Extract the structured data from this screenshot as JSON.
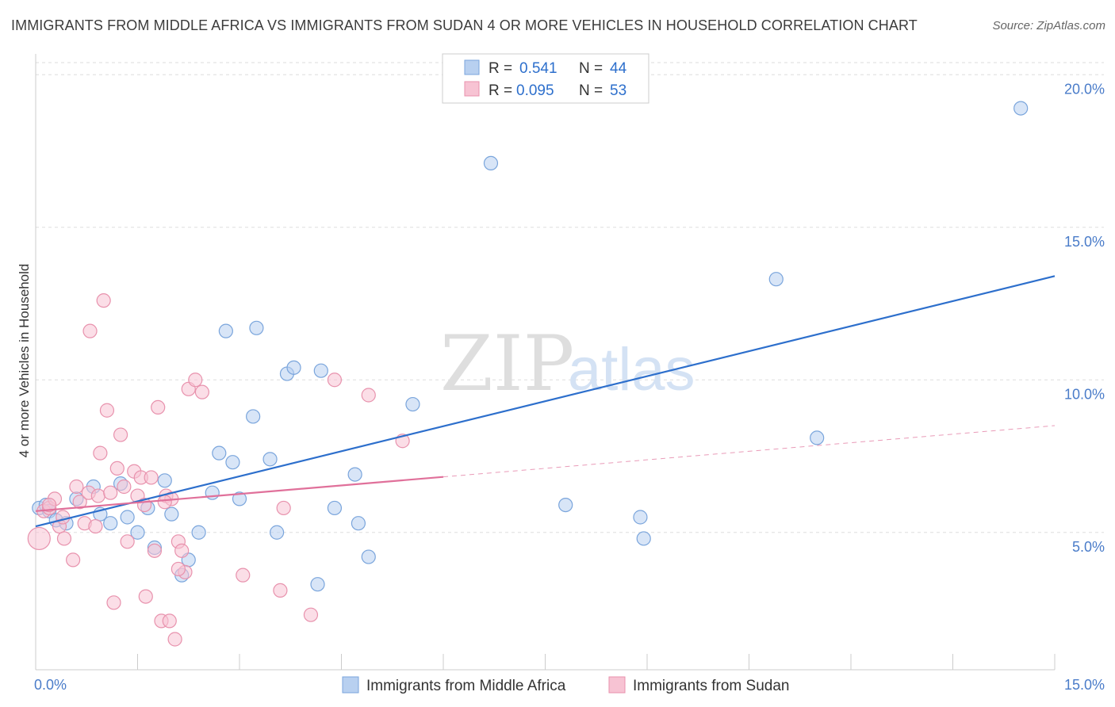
{
  "title": "IMMIGRANTS FROM MIDDLE AFRICA VS IMMIGRANTS FROM SUDAN 4 OR MORE VEHICLES IN HOUSEHOLD CORRELATION CHART",
  "source": "Source: ZipAtlas.com",
  "watermark": {
    "zip": "ZIP",
    "atlas": "atlas"
  },
  "legend": {
    "blue": {
      "r_label": "R =",
      "r_value": "0.541",
      "n_label": "N =",
      "n_value": "44"
    },
    "pink": {
      "r_label": "R =",
      "r_value": "0.095",
      "n_label": "N =",
      "n_value": "53"
    }
  },
  "colors": {
    "blue_fill": "#b8d0f0",
    "blue_stroke": "#7aa5dc",
    "blue_line": "#2d6fcc",
    "pink_fill": "#f7c3d3",
    "pink_stroke": "#e892ad",
    "pink_line": "#e0709a",
    "tick_text": "#4a7cc9",
    "grid": "#dddddd"
  },
  "chart_data": {
    "type": "scatter",
    "title": "IMMIGRANTS FROM MIDDLE AFRICA VS IMMIGRANTS FROM SUDAN 4 OR MORE VEHICLES IN HOUSEHOLD CORRELATION CHART",
    "xlabel": "",
    "ylabel": "4 or more Vehicles in Household",
    "xlim": [
      0,
      15
    ],
    "ylim": [
      0.5,
      20.5
    ],
    "x_ticks": [
      {
        "value": 0,
        "label": "0.0%"
      },
      {
        "value": 15,
        "label": "15.0%"
      }
    ],
    "y_ticks": [
      {
        "value": 5,
        "label": "5.0%"
      },
      {
        "value": 10,
        "label": "10.0%"
      },
      {
        "value": 15,
        "label": "15.0%"
      },
      {
        "value": 20,
        "label": "20.0%"
      }
    ],
    "grid": "horizontal dashed",
    "legend_position": "top-center",
    "series": [
      {
        "name": "Immigrants from Middle Africa",
        "color": "blue",
        "trend": {
          "x": [
            0,
            15
          ],
          "y": [
            5.2,
            13.4
          ],
          "dashed_from": null
        },
        "points": [
          [
            0.05,
            5.8
          ],
          [
            0.15,
            5.9
          ],
          [
            0.2,
            5.7
          ],
          [
            0.3,
            5.4
          ],
          [
            0.45,
            5.3
          ],
          [
            0.6,
            6.1
          ],
          [
            0.85,
            6.5
          ],
          [
            0.95,
            5.6
          ],
          [
            1.1,
            5.3
          ],
          [
            1.25,
            6.6
          ],
          [
            1.35,
            5.5
          ],
          [
            1.5,
            5.0
          ],
          [
            1.65,
            5.8
          ],
          [
            1.75,
            4.5
          ],
          [
            1.9,
            6.7
          ],
          [
            2.0,
            5.6
          ],
          [
            2.15,
            3.6
          ],
          [
            2.25,
            4.1
          ],
          [
            2.4,
            5.0
          ],
          [
            2.6,
            6.3
          ],
          [
            2.7,
            7.6
          ],
          [
            2.8,
            11.6
          ],
          [
            2.9,
            7.3
          ],
          [
            3.0,
            6.1
          ],
          [
            3.2,
            8.8
          ],
          [
            3.25,
            11.7
          ],
          [
            3.45,
            7.4
          ],
          [
            3.55,
            5.0
          ],
          [
            3.7,
            10.2
          ],
          [
            3.8,
            10.4
          ],
          [
            4.15,
            3.3
          ],
          [
            4.2,
            10.3
          ],
          [
            4.4,
            5.8
          ],
          [
            4.7,
            6.9
          ],
          [
            4.75,
            5.3
          ],
          [
            4.9,
            4.2
          ],
          [
            5.55,
            9.2
          ],
          [
            6.7,
            17.1
          ],
          [
            7.8,
            5.9
          ],
          [
            8.9,
            5.5
          ],
          [
            8.95,
            4.8
          ],
          [
            10.9,
            13.3
          ],
          [
            11.5,
            8.1
          ],
          [
            14.5,
            18.9
          ]
        ]
      },
      {
        "name": "Immigrants from Sudan",
        "color": "pink",
        "trend": {
          "x": [
            0,
            15
          ],
          "y": [
            5.7,
            8.5
          ],
          "dashed_from": 6.0
        },
        "points": [
          [
            0.05,
            4.8
          ],
          [
            0.12,
            5.7
          ],
          [
            0.2,
            5.8
          ],
          [
            0.28,
            6.1
          ],
          [
            0.35,
            5.2
          ],
          [
            0.42,
            4.8
          ],
          [
            0.55,
            4.1
          ],
          [
            0.6,
            6.5
          ],
          [
            0.65,
            6.0
          ],
          [
            0.72,
            5.3
          ],
          [
            0.78,
            6.3
          ],
          [
            0.8,
            11.6
          ],
          [
            0.88,
            5.2
          ],
          [
            0.92,
            6.2
          ],
          [
            0.95,
            7.6
          ],
          [
            1.0,
            12.6
          ],
          [
            1.05,
            9.0
          ],
          [
            1.15,
            2.7
          ],
          [
            1.2,
            7.1
          ],
          [
            1.25,
            8.2
          ],
          [
            1.3,
            6.5
          ],
          [
            1.35,
            4.7
          ],
          [
            1.45,
            7.0
          ],
          [
            1.5,
            6.2
          ],
          [
            1.55,
            6.8
          ],
          [
            1.6,
            5.9
          ],
          [
            1.62,
            2.9
          ],
          [
            1.7,
            6.8
          ],
          [
            1.75,
            4.4
          ],
          [
            1.8,
            9.1
          ],
          [
            1.85,
            2.1
          ],
          [
            1.92,
            6.2
          ],
          [
            1.97,
            2.1
          ],
          [
            2.0,
            6.1
          ],
          [
            2.05,
            1.5
          ],
          [
            2.1,
            4.7
          ],
          [
            2.15,
            4.4
          ],
          [
            2.2,
            3.7
          ],
          [
            2.25,
            9.7
          ],
          [
            2.35,
            10.0
          ],
          [
            2.45,
            9.6
          ],
          [
            3.05,
            3.6
          ],
          [
            3.6,
            3.1
          ],
          [
            3.65,
            5.8
          ],
          [
            4.05,
            2.3
          ],
          [
            4.4,
            10.0
          ],
          [
            4.9,
            9.5
          ],
          [
            5.4,
            8.0
          ],
          [
            0.2,
            5.9
          ],
          [
            0.4,
            5.5
          ],
          [
            1.1,
            6.3
          ],
          [
            1.9,
            6.0
          ],
          [
            2.1,
            3.8
          ]
        ]
      }
    ],
    "bottom_legend": [
      "Immigrants from Middle Africa",
      "Immigrants from Sudan"
    ]
  }
}
